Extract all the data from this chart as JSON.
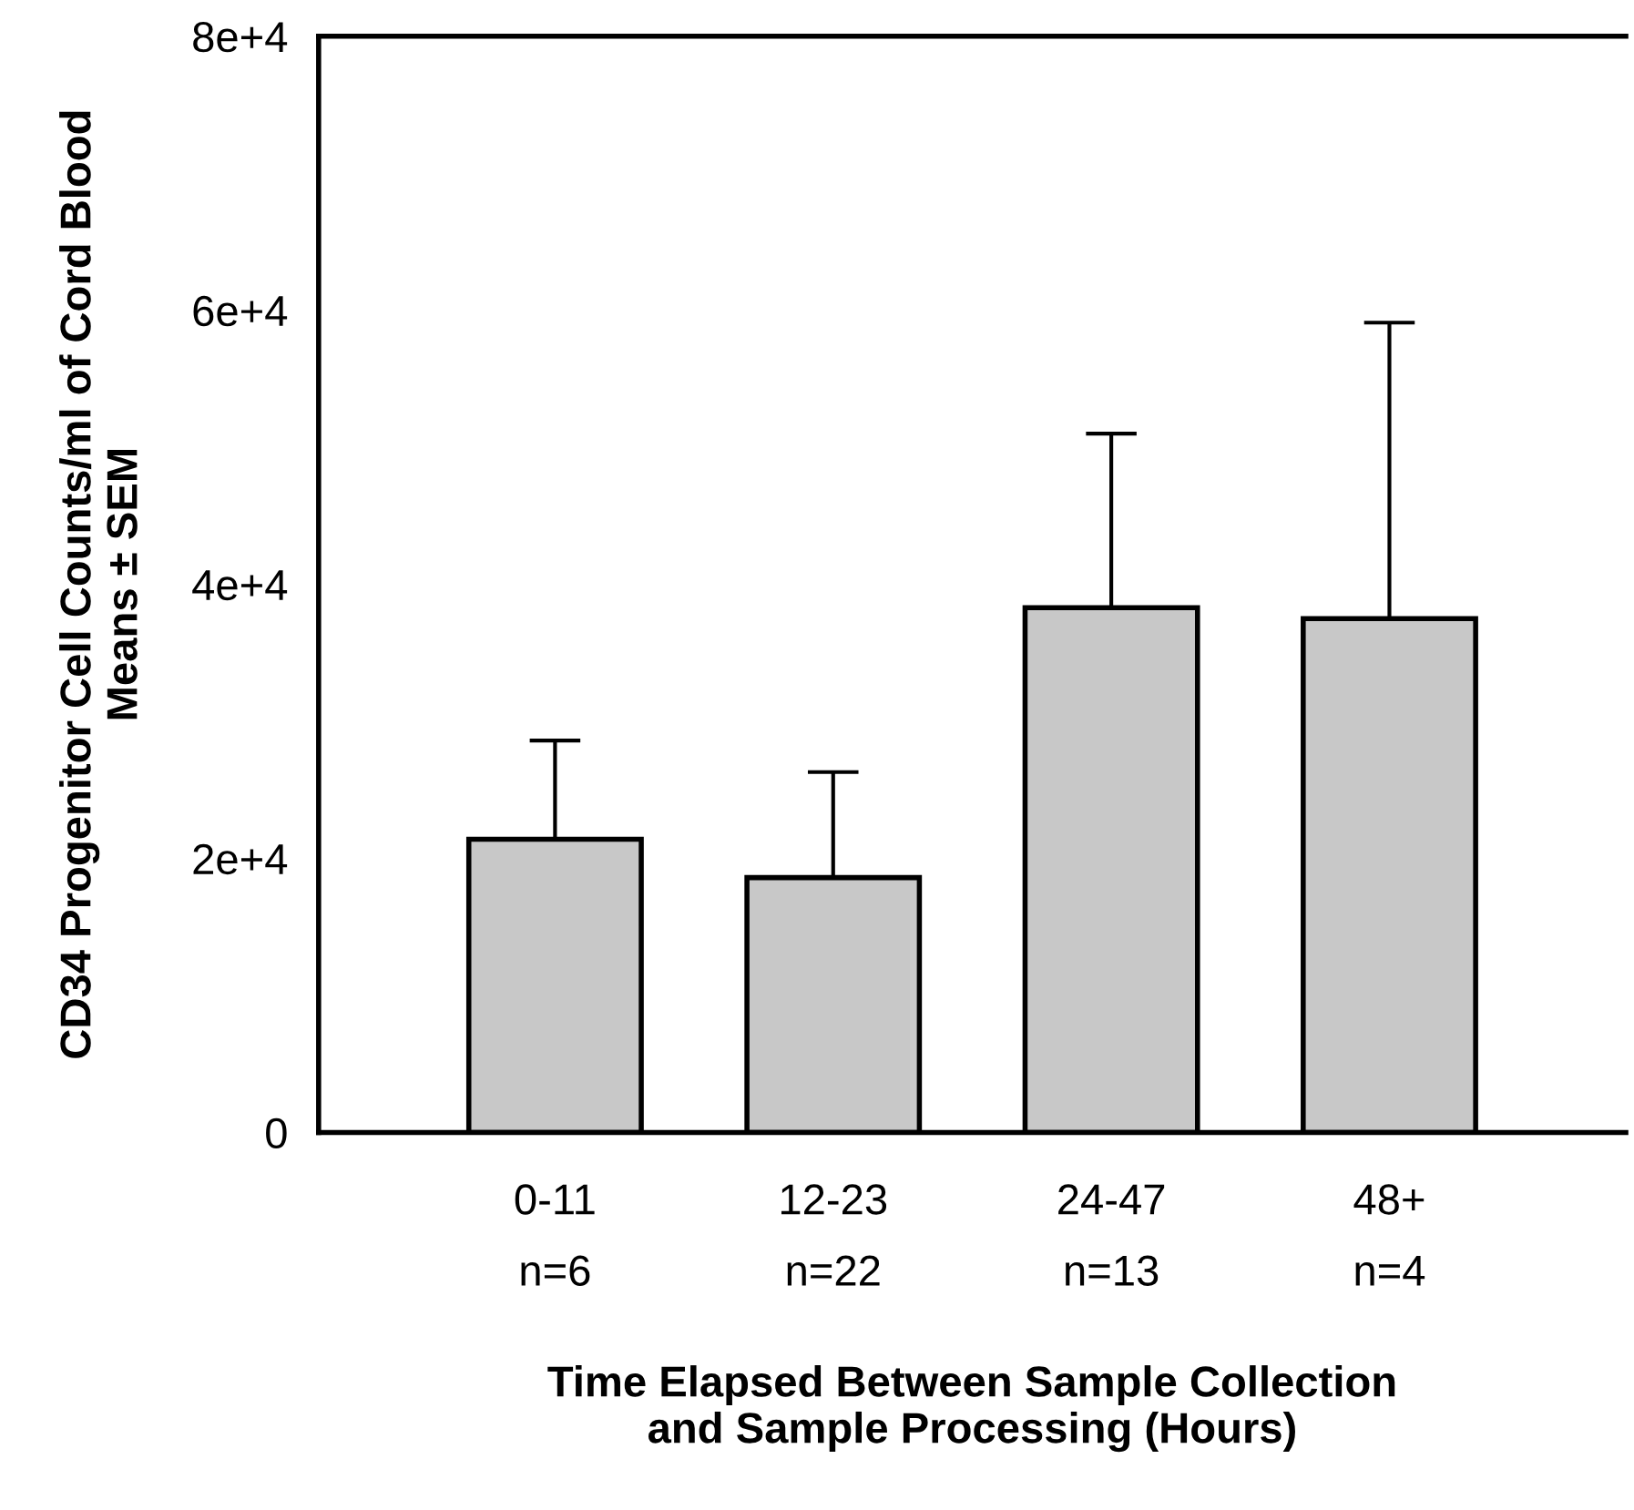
{
  "chart_data": {
    "type": "bar",
    "categories": [
      "0-11\nn=6",
      "12-23\nn=22",
      "24-47\nn=13",
      "48+\nn=4"
    ],
    "values": [
      21400,
      18600,
      38300,
      37500
    ],
    "errors": [
      [
        21400,
        28600
      ],
      [
        18600,
        26300
      ],
      [
        38300,
        51000
      ],
      [
        37500,
        59100
      ]
    ],
    "color": "#c8c8c8",
    "ylabel": "CD34 Progenitor Cell Counts/ml of Cord Blood\nMeans ± SEM",
    "xlabel": "Time Elapsed Between Sample Collection\nand Sample Processing (Hours)",
    "ylim": [
      0,
      80000
    ],
    "yticks": [
      {
        "value": 0,
        "label": "0"
      },
      {
        "value": 20000,
        "label": "2e+4"
      },
      {
        "value": 40000,
        "label": "4e+4"
      },
      {
        "value": 60000,
        "label": "6e+4"
      },
      {
        "value": 80000,
        "label": "8e+4"
      }
    ],
    "grid": false
  }
}
